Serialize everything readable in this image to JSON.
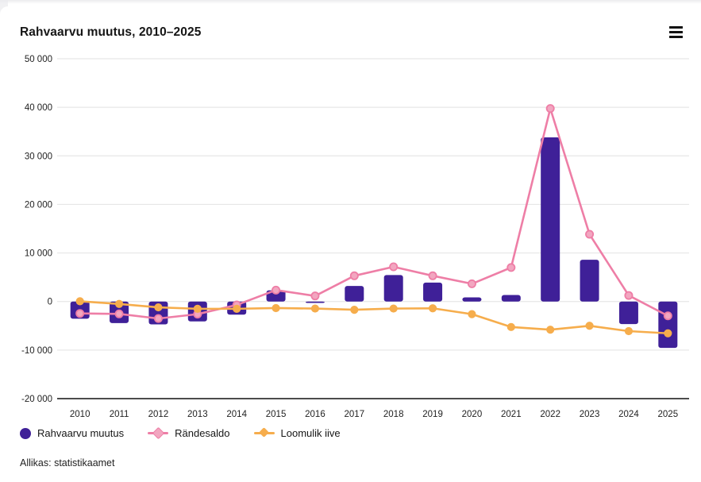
{
  "header": {
    "title": "Rahvaarvu muutus, 2010–2025",
    "menu_icon": "hamburger-menu-icon"
  },
  "source": "Allikas: statistikaamet",
  "colors": {
    "bar": "#3f2098",
    "migration_line": "#ee7ea6",
    "migration_marker_fill": "#f2a6c0",
    "natural_line": "#f6ad4c",
    "grid": "#e7e7e7",
    "axis_line": "#111111",
    "text": "#222222"
  },
  "legend": [
    {
      "label": "Rahvaarvu muutus",
      "symbol": "circle",
      "color": "#3f2098"
    },
    {
      "label": "Rändesaldo",
      "symbol": "line-diamond",
      "color": "#ee7ea6",
      "fill": "#f2a6c0"
    },
    {
      "label": "Loomulik iive",
      "symbol": "line-diamond",
      "color": "#f6ad4c",
      "fill": "#f6ad4c"
    }
  ],
  "chart_data": {
    "type": "combo",
    "title": "Rahvaarvu muutus, 2010–2025",
    "categories": [
      "2010",
      "2011",
      "2012",
      "2013",
      "2014",
      "2015",
      "2016",
      "2017",
      "2018",
      "2019",
      "2020",
      "2021",
      "2022",
      "2023",
      "2024",
      "2025"
    ],
    "series": [
      {
        "name": "Rahvaarvu muutus",
        "type": "bar",
        "values": [
          -3550,
          -4450,
          -4700,
          -4100,
          -2700,
          2300,
          -300,
          3200,
          5450,
          3900,
          850,
          1350,
          33800,
          8600,
          -4650,
          -9550
        ]
      },
      {
        "name": "Rändesaldo",
        "type": "line",
        "values": [
          -2450,
          -2550,
          -3500,
          -2600,
          -700,
          2350,
          1150,
          5300,
          7150,
          5300,
          3650,
          7000,
          39750,
          13850,
          1250,
          -2950
        ]
      },
      {
        "name": "Loomulik iive",
        "type": "line",
        "values": [
          50,
          -500,
          -1200,
          -1500,
          -1500,
          -1350,
          -1450,
          -1700,
          -1450,
          -1400,
          -2600,
          -5250,
          -5800,
          -5000,
          -6100,
          -6550
        ]
      }
    ],
    "ylim": [
      -20000,
      50000
    ],
    "ytick_step": 10000,
    "ytick_labels": [
      "50 000",
      "40 000",
      "30 000",
      "20 000",
      "10 000",
      "0",
      "-10 000",
      "-20 000"
    ],
    "xlabel": "",
    "ylabel": "",
    "grid": true,
    "legend_position": "bottom-left"
  }
}
